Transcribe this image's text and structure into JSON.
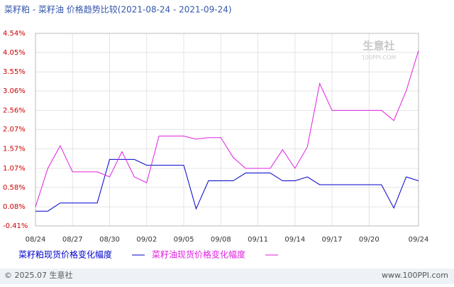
{
  "chart_data": {
    "type": "line",
    "title": "菜籽粕 - 菜籽油 价格趋势比较(2021-08-24 - 2021-09-24)",
    "categories": [
      "08/24",
      null,
      null,
      "08/27",
      null,
      null,
      "08/30",
      null,
      null,
      "09/02",
      null,
      null,
      "09/05",
      null,
      null,
      "09/08",
      null,
      null,
      "09/11",
      null,
      null,
      "09/14",
      null,
      null,
      "09/17",
      null,
      null,
      "09/20",
      null,
      null,
      null,
      "09/24"
    ],
    "series": [
      {
        "name": "菜籽粕现货价格变化幅度",
        "color": "#0000cc",
        "values": [
          -0.03,
          -0.03,
          0.18,
          0.18,
          0.18,
          0.18,
          1.3,
          1.3,
          1.3,
          1.15,
          1.15,
          1.15,
          1.15,
          0.03,
          0.75,
          0.75,
          0.75,
          0.95,
          0.95,
          0.95,
          0.75,
          0.75,
          0.85,
          0.65,
          0.65,
          0.65,
          0.65,
          0.65,
          0.65,
          0.05,
          0.85,
          0.75
        ]
      },
      {
        "name": "菜籽油现货价格变化幅度",
        "color": "#e020e0",
        "values": [
          0.08,
          1.07,
          1.65,
          0.98,
          0.98,
          0.98,
          0.85,
          1.5,
          0.85,
          0.7,
          1.9,
          1.9,
          1.9,
          1.82,
          1.86,
          1.86,
          1.35,
          1.07,
          1.07,
          1.07,
          1.55,
          1.07,
          1.62,
          3.25,
          2.56,
          2.56,
          2.56,
          2.56,
          2.56,
          2.3,
          3.06,
          4.1
        ]
      }
    ],
    "ylim": [
      -0.41,
      4.54
    ],
    "yticks": [
      {
        "value": 4.54,
        "label": "4.54%"
      },
      {
        "value": 4.05,
        "label": "4.05%"
      },
      {
        "value": 3.55,
        "label": "3.55%"
      },
      {
        "value": 3.06,
        "label": "3.06%"
      },
      {
        "value": 2.56,
        "label": "2.56%"
      },
      {
        "value": 2.07,
        "label": "2.07%"
      },
      {
        "value": 1.57,
        "label": "1.57%"
      },
      {
        "value": 1.07,
        "label": "1.07%"
      },
      {
        "value": 0.58,
        "label": "0.58%"
      },
      {
        "value": 0.08,
        "label": "0.08%"
      },
      {
        "value": -0.41,
        "label": "-0.41%"
      }
    ],
    "grid": true,
    "watermark": "生意社",
    "watermark_sub": "100PPI.COM",
    "footer_left": "© 2025.07 生意社",
    "footer_right": "www.100PPI.com"
  }
}
